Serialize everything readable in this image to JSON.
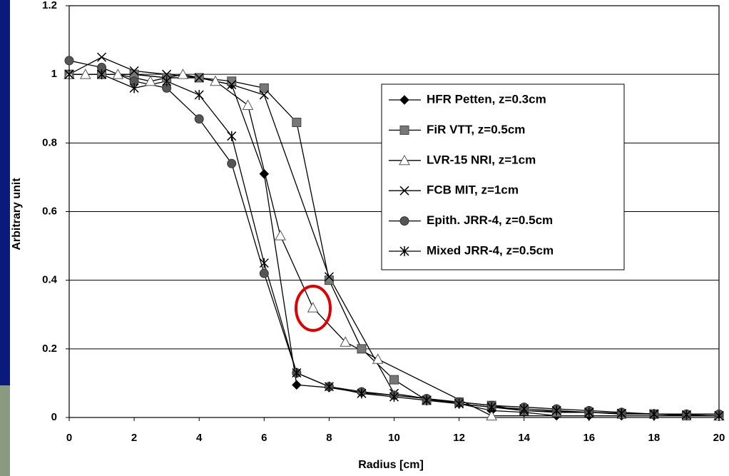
{
  "chart_data": {
    "type": "line",
    "x_label": "Radius [cm]",
    "y_label": "Arbitrary unit",
    "xlim": [
      0,
      20
    ],
    "xticks": [
      0,
      2,
      4,
      6,
      8,
      10,
      12,
      14,
      16,
      18,
      20
    ],
    "ylim": [
      0,
      1.2
    ],
    "yticks": [
      0,
      0.2,
      0.4,
      0.6,
      0.8,
      1,
      1.2
    ],
    "grid": true,
    "series": [
      {
        "name": "HFR Petten, z=0.3cm",
        "color": "#000000",
        "marker": "diamond",
        "x": [
          0,
          1,
          2,
          3,
          4,
          5,
          6,
          7,
          8,
          9,
          10,
          11,
          12,
          13,
          14,
          15,
          16,
          17,
          18,
          19,
          20
        ],
        "values": [
          1,
          1,
          1,
          0.99,
          0.99,
          0.97,
          0.71,
          0.095,
          0.087,
          0.072,
          0.065,
          0.055,
          0.04,
          0.02,
          0.015,
          0.005,
          0.005,
          0.005,
          0.005,
          0.005,
          0.005
        ]
      },
      {
        "name": "FiR VTT, z=0.5cm",
        "color": "#777777",
        "marker": "square",
        "x": [
          0,
          1,
          2,
          3,
          4,
          5,
          6,
          7,
          8,
          9,
          10,
          11,
          12,
          13,
          14,
          15,
          16,
          17,
          18,
          19,
          20
        ],
        "values": [
          1,
          1,
          1,
          0.99,
          0.99,
          0.98,
          0.96,
          0.86,
          0.4,
          0.2,
          0.11,
          0.05,
          0.045,
          0.035,
          0.02,
          0.015,
          0.015,
          0.01,
          0.01,
          0.005,
          0.005
        ]
      },
      {
        "name": "LVR-15 NRI, z=1cm",
        "color": "#ffffff",
        "marker": "triangle",
        "x": [
          0,
          0.5,
          1.5,
          2.5,
          3.5,
          4.5,
          5.5,
          6.5,
          7.5,
          8.5,
          9.5,
          13,
          20
        ],
        "values": [
          1,
          1,
          1,
          0.98,
          1,
          0.98,
          0.91,
          0.53,
          0.32,
          0.22,
          0.17,
          0.005,
          0.005
        ]
      },
      {
        "name": "FCB MIT, z=1cm",
        "color": "#000000",
        "marker": "cross",
        "x": [
          0,
          1,
          2,
          3,
          4,
          5,
          6,
          8,
          10,
          12,
          14,
          16,
          18,
          20
        ],
        "values": [
          1,
          1.05,
          1.01,
          1,
          0.99,
          0.97,
          0.94,
          0.41,
          0.07,
          0.04,
          0.02,
          0.015,
          0.01,
          0.005
        ]
      },
      {
        "name": "Epith. JRR-4, z=0.5cm",
        "color": "#555555",
        "marker": "circle",
        "x": [
          0,
          1,
          2,
          3,
          4,
          5,
          6,
          7,
          8,
          9,
          10,
          11,
          12,
          13,
          14,
          15,
          16,
          17,
          18,
          19,
          20
        ],
        "values": [
          1.04,
          1.02,
          0.98,
          0.96,
          0.87,
          0.74,
          0.42,
          0.13,
          0.09,
          0.075,
          0.065,
          0.055,
          0.045,
          0.035,
          0.03,
          0.025,
          0.02,
          0.015,
          0.01,
          0.01,
          0.01
        ]
      },
      {
        "name": "Mixed JRR-4, z=0.5cm",
        "color": "#000000",
        "marker": "asterisk",
        "x": [
          0,
          1,
          2,
          3,
          4,
          5,
          6,
          7,
          8,
          9,
          10,
          11,
          12,
          13,
          14,
          15,
          16,
          17,
          18,
          19,
          20
        ],
        "values": [
          1,
          1,
          0.96,
          0.98,
          0.94,
          0.82,
          0.45,
          0.13,
          0.09,
          0.07,
          0.06,
          0.05,
          0.04,
          0.03,
          0.025,
          0.02,
          0.015,
          0.012,
          0.01,
          0.008,
          0.005
        ]
      }
    ]
  }
}
